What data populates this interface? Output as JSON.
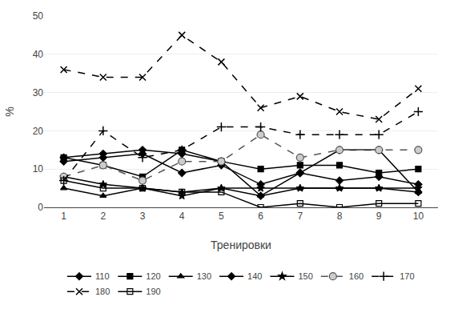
{
  "chart_data": {
    "type": "line",
    "xlabel": "Тренировки",
    "ylabel": "%",
    "x": [
      1,
      2,
      3,
      4,
      5,
      6,
      7,
      8,
      9,
      10
    ],
    "xlim": [
      0.5,
      10.5
    ],
    "xticks": [
      1,
      2,
      3,
      4,
      5,
      6,
      7,
      8,
      9,
      10
    ],
    "ylim": [
      0,
      50
    ],
    "yticks": [
      0,
      10,
      20,
      30,
      40,
      50
    ],
    "grid": true,
    "legend": "bottom",
    "series": [
      {
        "name": "110",
        "color": "#000000",
        "marker": "diamond",
        "line_style": "solid",
        "values": [
          13,
          14,
          15,
          14,
          12,
          3,
          9,
          15,
          15,
          4
        ]
      },
      {
        "name": "120",
        "color": "#000000",
        "marker": "square",
        "line_style": "solid",
        "values": [
          13,
          11,
          8,
          15,
          12,
          10,
          11,
          11,
          9,
          10
        ]
      },
      {
        "name": "130",
        "color": "#000000",
        "marker": "triangle",
        "line_style": "solid",
        "values": [
          5,
          3,
          5,
          4,
          5,
          3,
          5,
          5,
          5,
          4
        ]
      },
      {
        "name": "140",
        "color": "#000000",
        "marker": "diamond",
        "line_style": "solid",
        "values": [
          12,
          13,
          14,
          9,
          11,
          6,
          9,
          7,
          8,
          6
        ]
      },
      {
        "name": "150",
        "color": "#000000",
        "marker": "star",
        "line_style": "solid",
        "values": [
          8,
          6,
          5,
          3,
          5,
          5,
          5,
          5,
          5,
          5
        ]
      },
      {
        "name": "160",
        "color": "#555555",
        "marker": "circle",
        "line_style": "dashed",
        "values": [
          8,
          11,
          7,
          12,
          12,
          19,
          13,
          15,
          15,
          15
        ]
      },
      {
        "name": "170",
        "color": "#000000",
        "marker": "plus",
        "line_style": "dashed",
        "values": [
          7,
          20,
          13,
          15,
          21,
          21,
          19,
          19,
          19,
          25
        ]
      },
      {
        "name": "180",
        "color": "#000000",
        "marker": "x",
        "line_style": "dashed",
        "values": [
          36,
          34,
          34,
          45,
          38,
          26,
          29,
          25,
          23,
          31
        ]
      },
      {
        "name": "190",
        "color": "#000000",
        "marker": "open-square",
        "line_style": "solid",
        "values": [
          7,
          5,
          5,
          4,
          4,
          0,
          1,
          0,
          1,
          1
        ]
      }
    ]
  }
}
